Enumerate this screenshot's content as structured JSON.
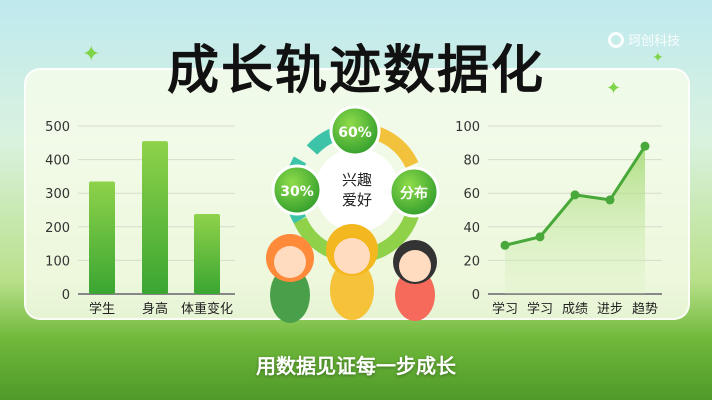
{
  "title": "成长轨迹数据化",
  "logo_text": "珂创科技",
  "footer": "用数据见证每一步成长",
  "colors": {
    "bar": "#4cb63a",
    "line": "#49a83a",
    "teal": "#3cc3a8",
    "yellow": "#f3c23c"
  },
  "donut": {
    "center_label": "兴趣爱好",
    "labels": [
      "60%",
      "30%",
      "分布"
    ]
  },
  "chart_data": [
    {
      "type": "bar",
      "categories": [
        "学生",
        "身高",
        "体重变化"
      ],
      "values": [
        335,
        455,
        238
      ],
      "ylim": [
        0,
        500
      ],
      "yticks": [
        0,
        100,
        200,
        300,
        400,
        500
      ],
      "grid": true
    },
    {
      "type": "area",
      "categories": [
        "学习",
        "学习",
        "成绩",
        "进步",
        "趋势"
      ],
      "values": [
        29,
        34,
        59,
        56,
        88
      ],
      "ylim": [
        0,
        100
      ],
      "yticks": [
        0,
        20,
        40,
        60,
        80,
        100
      ],
      "grid": true
    }
  ]
}
